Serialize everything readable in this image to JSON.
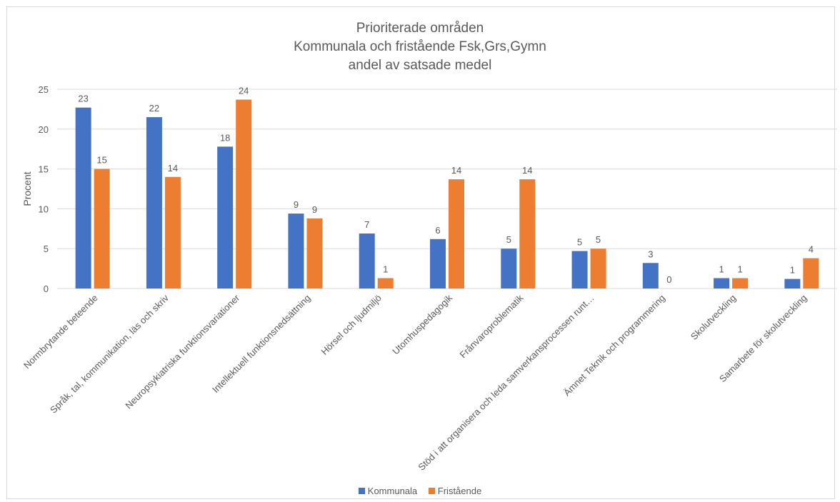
{
  "chart_data": {
    "type": "bar",
    "title": [
      "Prioriterade områden",
      "Kommunala och fristående Fsk,Grs,Gymn",
      "andel av satsade medel"
    ],
    "xlabel": "",
    "ylabel": "Procent",
    "ylim": [
      0,
      25
    ],
    "yticks": [
      "0",
      "5",
      "10",
      "15",
      "20",
      "25"
    ],
    "grid": true,
    "legend_position": "bottom",
    "categories": [
      "Normbrytande beteende",
      "Språk, tal, kommunikation, läs och skriv",
      "Neuropsykiatriska funktionsvariationer",
      "Intellektuell funktionsnedsättning",
      "Hörsel och ljudmiljö",
      "Utomhuspedagogik",
      "Frånvaroproblematik",
      "Stöd i att organisera och leda samverkansprocessen runt…",
      "Ämnet Teknik och programmering",
      "Skolutveckling",
      "Samarbete för skolutveckling"
    ],
    "series": [
      {
        "name": "Kommunala",
        "color": "#4472c4",
        "values": [
          22.7,
          21.5,
          17.8,
          9.4,
          6.9,
          6.2,
          5.0,
          4.7,
          3.2,
          1.3,
          1.2
        ],
        "labels": [
          "23",
          "22",
          "18",
          "9",
          "7",
          "6",
          "5",
          "5",
          "3",
          "1",
          "1"
        ]
      },
      {
        "name": "Fristående",
        "color": "#ed7d31",
        "values": [
          15.0,
          14.0,
          23.7,
          8.8,
          1.3,
          13.7,
          13.7,
          5.0,
          0,
          1.3,
          3.8
        ],
        "labels": [
          "15",
          "14",
          "24",
          "9",
          "1",
          "14",
          "14",
          "5",
          "0",
          "1",
          "4"
        ]
      }
    ]
  }
}
